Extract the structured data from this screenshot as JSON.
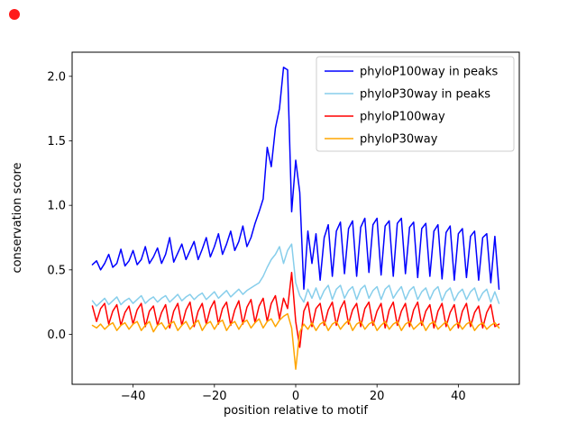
{
  "decorations": {
    "record_dot_color": "#ff1a1a"
  },
  "chart_data": {
    "type": "line",
    "title": "",
    "xlabel": "position relative to motif",
    "ylabel": "conservation score",
    "xlim": [
      -55,
      55
    ],
    "ylim": [
      -0.387,
      2.187
    ],
    "grid": false,
    "legend_position": "upper right",
    "legend_border_color": "#cccccc",
    "xticks": [
      {
        "value": -40,
        "label": "−40"
      },
      {
        "value": -20,
        "label": "−20"
      },
      {
        "value": 0,
        "label": "0"
      },
      {
        "value": 20,
        "label": "20"
      },
      {
        "value": 40,
        "label": "40"
      }
    ],
    "yticks": [
      {
        "value": 0.0,
        "label": "0.0"
      },
      {
        "value": 0.5,
        "label": "0.5"
      },
      {
        "value": 1.0,
        "label": "1.0"
      },
      {
        "value": 1.5,
        "label": "1.5"
      },
      {
        "value": 2.0,
        "label": "2.0"
      }
    ],
    "x": [
      -50,
      -49,
      -48,
      -47,
      -46,
      -45,
      -44,
      -43,
      -42,
      -41,
      -40,
      -39,
      -38,
      -37,
      -36,
      -35,
      -34,
      -33,
      -32,
      -31,
      -30,
      -29,
      -28,
      -27,
      -26,
      -25,
      -24,
      -23,
      -22,
      -21,
      -20,
      -19,
      -18,
      -17,
      -16,
      -15,
      -14,
      -13,
      -12,
      -11,
      -10,
      -9,
      -8,
      -7,
      -6,
      -5,
      -4,
      -3,
      -2,
      -1,
      0,
      1,
      2,
      3,
      4,
      5,
      6,
      7,
      8,
      9,
      10,
      11,
      12,
      13,
      14,
      15,
      16,
      17,
      18,
      19,
      20,
      21,
      22,
      23,
      24,
      25,
      26,
      27,
      28,
      29,
      30,
      31,
      32,
      33,
      34,
      35,
      36,
      37,
      38,
      39,
      40,
      41,
      42,
      43,
      44,
      45,
      46,
      47,
      48,
      49,
      50
    ],
    "series": [
      {
        "name": "phyloP100way in peaks",
        "color": "#0000ff",
        "values": [
          0.54,
          0.57,
          0.5,
          0.55,
          0.62,
          0.52,
          0.55,
          0.66,
          0.53,
          0.57,
          0.65,
          0.54,
          0.58,
          0.68,
          0.55,
          0.6,
          0.67,
          0.55,
          0.62,
          0.75,
          0.56,
          0.63,
          0.7,
          0.58,
          0.65,
          0.72,
          0.58,
          0.66,
          0.75,
          0.6,
          0.68,
          0.78,
          0.62,
          0.7,
          0.8,
          0.65,
          0.72,
          0.84,
          0.68,
          0.75,
          0.86,
          0.95,
          1.05,
          1.45,
          1.3,
          1.6,
          1.75,
          2.07,
          2.05,
          0.95,
          1.35,
          1.1,
          0.35,
          0.8,
          0.55,
          0.78,
          0.42,
          0.75,
          0.85,
          0.45,
          0.8,
          0.87,
          0.47,
          0.82,
          0.88,
          0.45,
          0.83,
          0.9,
          0.48,
          0.85,
          0.9,
          0.46,
          0.84,
          0.88,
          0.45,
          0.86,
          0.9,
          0.47,
          0.83,
          0.87,
          0.44,
          0.82,
          0.86,
          0.45,
          0.8,
          0.85,
          0.43,
          0.79,
          0.84,
          0.42,
          0.78,
          0.82,
          0.44,
          0.76,
          0.8,
          0.42,
          0.75,
          0.78,
          0.4,
          0.76,
          0.35
        ]
      },
      {
        "name": "phyloP30way in peaks",
        "color": "#87ceeb",
        "values": [
          0.26,
          0.22,
          0.25,
          0.28,
          0.23,
          0.26,
          0.29,
          0.23,
          0.26,
          0.28,
          0.24,
          0.27,
          0.3,
          0.24,
          0.27,
          0.29,
          0.25,
          0.28,
          0.3,
          0.25,
          0.28,
          0.31,
          0.26,
          0.29,
          0.31,
          0.27,
          0.3,
          0.32,
          0.27,
          0.3,
          0.33,
          0.28,
          0.31,
          0.34,
          0.29,
          0.32,
          0.35,
          0.31,
          0.34,
          0.36,
          0.38,
          0.4,
          0.45,
          0.52,
          0.58,
          0.62,
          0.68,
          0.55,
          0.65,
          0.7,
          0.4,
          0.3,
          0.25,
          0.35,
          0.28,
          0.36,
          0.27,
          0.34,
          0.38,
          0.27,
          0.35,
          0.38,
          0.28,
          0.34,
          0.37,
          0.27,
          0.35,
          0.38,
          0.28,
          0.34,
          0.37,
          0.27,
          0.35,
          0.38,
          0.28,
          0.33,
          0.37,
          0.27,
          0.34,
          0.37,
          0.27,
          0.33,
          0.36,
          0.27,
          0.34,
          0.37,
          0.26,
          0.33,
          0.36,
          0.26,
          0.32,
          0.35,
          0.27,
          0.33,
          0.36,
          0.26,
          0.32,
          0.35,
          0.25,
          0.33,
          0.24
        ]
      },
      {
        "name": "phyloP100way",
        "color": "#ff0000",
        "values": [
          0.22,
          0.1,
          0.2,
          0.24,
          0.08,
          0.18,
          0.23,
          0.07,
          0.17,
          0.22,
          0.08,
          0.19,
          0.24,
          0.06,
          0.18,
          0.22,
          0.07,
          0.17,
          0.23,
          0.05,
          0.18,
          0.24,
          0.07,
          0.19,
          0.25,
          0.06,
          0.18,
          0.24,
          0.08,
          0.2,
          0.26,
          0.08,
          0.2,
          0.25,
          0.07,
          0.19,
          0.26,
          0.08,
          0.21,
          0.27,
          0.09,
          0.22,
          0.28,
          0.1,
          0.24,
          0.3,
          0.12,
          0.28,
          0.2,
          0.48,
          0.1,
          -0.1,
          0.18,
          0.25,
          0.06,
          0.2,
          0.24,
          0.07,
          0.19,
          0.25,
          0.07,
          0.2,
          0.26,
          0.08,
          0.19,
          0.24,
          0.06,
          0.2,
          0.25,
          0.07,
          0.18,
          0.24,
          0.05,
          0.19,
          0.25,
          0.07,
          0.18,
          0.24,
          0.06,
          0.19,
          0.25,
          0.07,
          0.18,
          0.23,
          0.05,
          0.18,
          0.24,
          0.06,
          0.17,
          0.23,
          0.05,
          0.18,
          0.24,
          0.06,
          0.17,
          0.22,
          0.05,
          0.17,
          0.23,
          0.06,
          0.08
        ]
      },
      {
        "name": "phyloP30way",
        "color": "#ffa500",
        "values": [
          0.07,
          0.05,
          0.08,
          0.04,
          0.07,
          0.09,
          0.03,
          0.07,
          0.09,
          0.04,
          0.08,
          0.1,
          0.03,
          0.07,
          0.1,
          0.02,
          0.07,
          0.09,
          0.04,
          0.08,
          0.1,
          0.03,
          0.07,
          0.1,
          0.04,
          0.08,
          0.11,
          0.03,
          0.08,
          0.1,
          0.04,
          0.09,
          0.11,
          0.03,
          0.08,
          0.1,
          0.04,
          0.09,
          0.11,
          0.05,
          0.09,
          0.12,
          0.05,
          0.1,
          0.12,
          0.06,
          0.11,
          0.14,
          0.16,
          0.05,
          -0.27,
          0.02,
          0.08,
          0.04,
          0.09,
          0.03,
          0.08,
          0.1,
          0.03,
          0.08,
          0.1,
          0.04,
          0.08,
          0.11,
          0.03,
          0.08,
          0.1,
          0.04,
          0.08,
          0.1,
          0.03,
          0.07,
          0.1,
          0.04,
          0.08,
          0.1,
          0.03,
          0.08,
          0.1,
          0.04,
          0.07,
          0.1,
          0.03,
          0.08,
          0.1,
          0.04,
          0.07,
          0.1,
          0.03,
          0.07,
          0.09,
          0.04,
          0.08,
          0.1,
          0.03,
          0.07,
          0.09,
          0.04,
          0.07,
          0.09,
          0.05
        ]
      }
    ]
  }
}
